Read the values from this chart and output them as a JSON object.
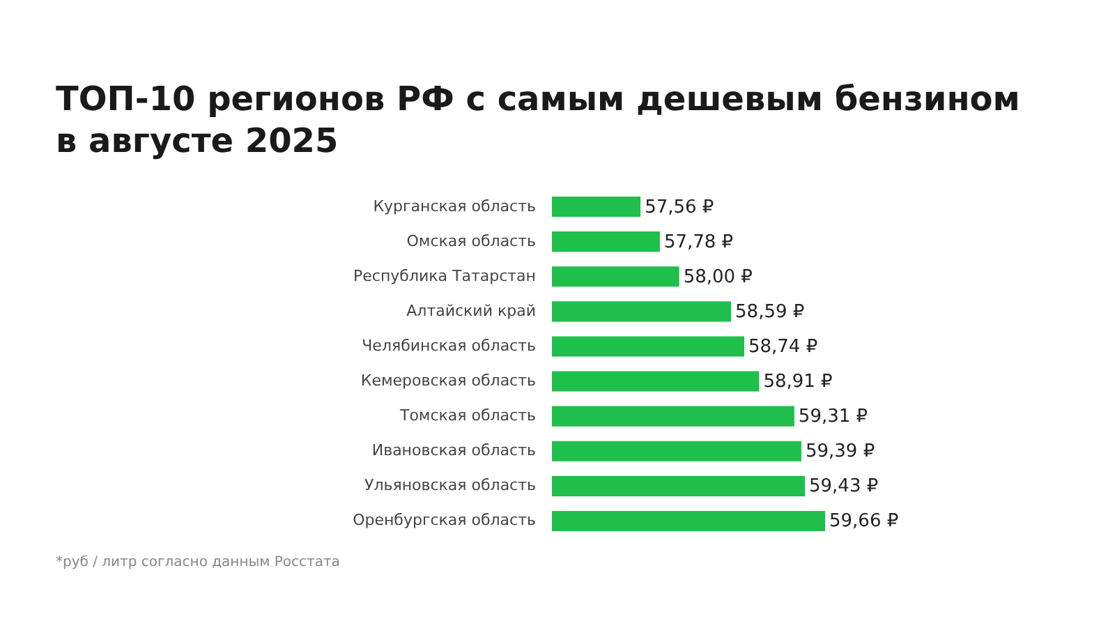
{
  "chart_data": {
    "type": "bar",
    "orientation": "horizontal",
    "title": "ТОП-10 регионов РФ с самым дешевым бензином в августе 2025",
    "categories": [
      "Курганская область",
      "Омская область",
      "Республика Татарстан",
      "Алтайский край",
      "Челябинская область",
      "Кемеровская область",
      "Томская область",
      "Ивановская область",
      "Ульяновская область",
      "Оренбургская область"
    ],
    "values": [
      57.56,
      57.78,
      58.0,
      58.59,
      58.74,
      58.91,
      59.31,
      59.39,
      59.43,
      59.66
    ],
    "value_labels": [
      "57,56 ₽",
      "57,78 ₽",
      "58,00 ₽",
      "58,59 ₽",
      "58,74 ₽",
      "58,91 ₽",
      "59,31 ₽",
      "59,39 ₽",
      "59,43 ₽",
      "59,66 ₽"
    ],
    "color": "#1fbf4c",
    "tick_labels": "y",
    "annotations": [
      "*руб / литр согласно данным Росстата"
    ]
  }
}
